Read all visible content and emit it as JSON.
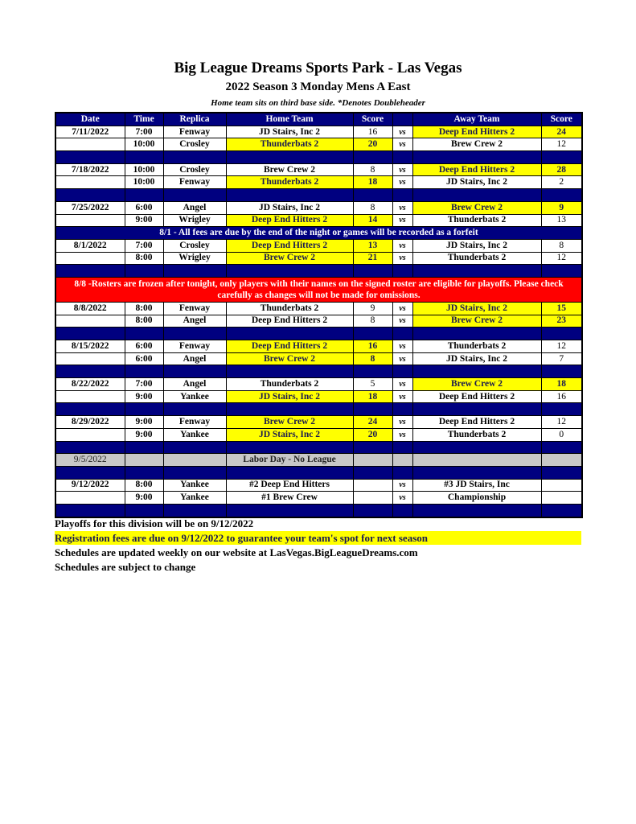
{
  "header": {
    "title": "Big League Dreams Sports Park - Las Vegas",
    "subtitle": "2022 Season 3 Monday Mens A East",
    "note": "Home team sits on third base side.  *Denotes Doubleheader"
  },
  "columns": [
    "Date",
    "Time",
    "Replica",
    "Home Team",
    "Score",
    "",
    "Away Team",
    "Score"
  ],
  "colors": {
    "header": "#000080",
    "winner": "#ffff00",
    "alert": "#ff0000",
    "holiday": "#c8c8c8"
  },
  "rows": [
    {
      "type": "game",
      "date": "7/11/2022",
      "time": "7:00",
      "replica": "Fenway",
      "home": "JD Stairs, Inc 2",
      "home_score": "16",
      "vs": "vs",
      "away": "Deep End Hitters 2",
      "away_score": "24",
      "winner": "away"
    },
    {
      "type": "game",
      "date": "",
      "time": "10:00",
      "replica": "Crosley",
      "home": "Thunderbats 2",
      "home_score": "20",
      "vs": "vs",
      "away": "Brew Crew 2",
      "away_score": "12",
      "winner": "home"
    },
    {
      "type": "blank"
    },
    {
      "type": "game",
      "date": "7/18/2022",
      "time": "10:00",
      "replica": "Crosley",
      "home": "Brew Crew 2",
      "home_score": "8",
      "vs": "vs",
      "away": "Deep End Hitters 2",
      "away_score": "28",
      "winner": "away"
    },
    {
      "type": "game",
      "date": "",
      "time": "10:00",
      "replica": "Fenway",
      "home": "Thunderbats 2",
      "home_score": "18",
      "vs": "vs",
      "away": "JD Stairs, Inc 2",
      "away_score": "2",
      "winner": "home"
    },
    {
      "type": "blank"
    },
    {
      "type": "game",
      "date": "7/25/2022",
      "time": "6:00",
      "replica": "Angel",
      "home": "JD Stairs, Inc 2",
      "home_score": "8",
      "vs": "vs",
      "away": "Brew Crew 2",
      "away_score": "9",
      "winner": "away"
    },
    {
      "type": "game",
      "date": "",
      "time": "9:00",
      "replica": "Wrigley",
      "home": "Deep End Hitters 2",
      "home_score": "14",
      "vs": "vs",
      "away": "Thunderbats 2",
      "away_score": "13",
      "winner": "home"
    },
    {
      "type": "notice",
      "text": "8/1 - All fees are due by the end of the night or games will be recorded as a forfeit"
    },
    {
      "type": "game",
      "date": "8/1/2022",
      "time": "7:00",
      "replica": "Crosley",
      "home": "Deep End Hitters 2",
      "home_score": "13",
      "vs": "vs",
      "away": "JD Stairs, Inc 2",
      "away_score": "8",
      "winner": "home"
    },
    {
      "type": "game",
      "date": "",
      "time": "8:00",
      "replica": "Wrigley",
      "home": "Brew Crew 2",
      "home_score": "21",
      "vs": "vs",
      "away": "Thunderbats 2",
      "away_score": "12",
      "winner": "home"
    },
    {
      "type": "blank"
    },
    {
      "type": "red",
      "text": "8/8 -Rosters are frozen after tonight, only players with their names on the signed roster are eligible for playoffs. Please check carefully as changes will not be made for omissions."
    },
    {
      "type": "game",
      "date": "8/8/2022",
      "time": "8:00",
      "replica": "Fenway",
      "home": "Thunderbats 2",
      "home_score": "9",
      "vs": "vs",
      "away": "JD Stairs, Inc 2",
      "away_score": "15",
      "winner": "away"
    },
    {
      "type": "game",
      "date": "",
      "time": "8:00",
      "replica": "Angel",
      "home": "Deep End Hitters 2",
      "home_score": "8",
      "vs": "vs",
      "away": "Brew Crew 2",
      "away_score": "23",
      "winner": "away"
    },
    {
      "type": "blank"
    },
    {
      "type": "game",
      "date": "8/15/2022",
      "time": "6:00",
      "replica": "Fenway",
      "home": "Deep End Hitters 2",
      "home_score": "16",
      "vs": "vs",
      "away": "Thunderbats 2",
      "away_score": "12",
      "winner": "home"
    },
    {
      "type": "game",
      "date": "",
      "time": "6:00",
      "replica": "Angel",
      "home": "Brew Crew 2",
      "home_score": "8",
      "vs": "vs",
      "away": "JD Stairs, Inc 2",
      "away_score": "7",
      "winner": "home"
    },
    {
      "type": "blank"
    },
    {
      "type": "game",
      "date": "8/22/2022",
      "time": "7:00",
      "replica": "Angel",
      "home": "Thunderbats 2",
      "home_score": "5",
      "vs": "vs",
      "away": "Brew Crew 2",
      "away_score": "18",
      "winner": "away"
    },
    {
      "type": "game",
      "date": "",
      "time": "9:00",
      "replica": "Yankee",
      "home": "JD Stairs, Inc 2",
      "home_score": "18",
      "vs": "vs",
      "away": "Deep End Hitters 2",
      "away_score": "16",
      "winner": "home"
    },
    {
      "type": "blank"
    },
    {
      "type": "game",
      "date": "8/29/2022",
      "time": "9:00",
      "replica": "Fenway",
      "home": "Brew Crew 2",
      "home_score": "24",
      "vs": "vs",
      "away": "Deep End Hitters 2",
      "away_score": "12",
      "winner": "home"
    },
    {
      "type": "game",
      "date": "",
      "time": "9:00",
      "replica": "Yankee",
      "home": "JD Stairs, Inc 2",
      "home_score": "20",
      "vs": "vs",
      "away": "Thunderbats 2",
      "away_score": "0",
      "winner": "home"
    },
    {
      "type": "blank"
    },
    {
      "type": "gray",
      "date": "9/5/2022",
      "text": "Labor Day - No League"
    },
    {
      "type": "blank"
    },
    {
      "type": "game",
      "date": "9/12/2022",
      "time": "8:00",
      "replica": "Yankee",
      "home": "#2 Deep End Hitters",
      "home_score": "",
      "vs": "vs",
      "away": "#3 JD Stairs, Inc",
      "away_score": "",
      "winner": ""
    },
    {
      "type": "game",
      "date": "",
      "time": "9:00",
      "replica": "Yankee",
      "home": "#1 Brew Crew",
      "home_score": "",
      "vs": "vs",
      "away": "Championship",
      "away_score": "",
      "winner": ""
    },
    {
      "type": "blank"
    }
  ],
  "footer": {
    "playoffs": "Playoffs for this division will be on 9/12/2022",
    "registration": "Registration fees are due on 9/12/2022 to guarantee your team's spot for next season",
    "website": "Schedules are updated weekly on our website at LasVegas.BigLeagueDreams.com",
    "subject": "Schedules are subject to change"
  }
}
